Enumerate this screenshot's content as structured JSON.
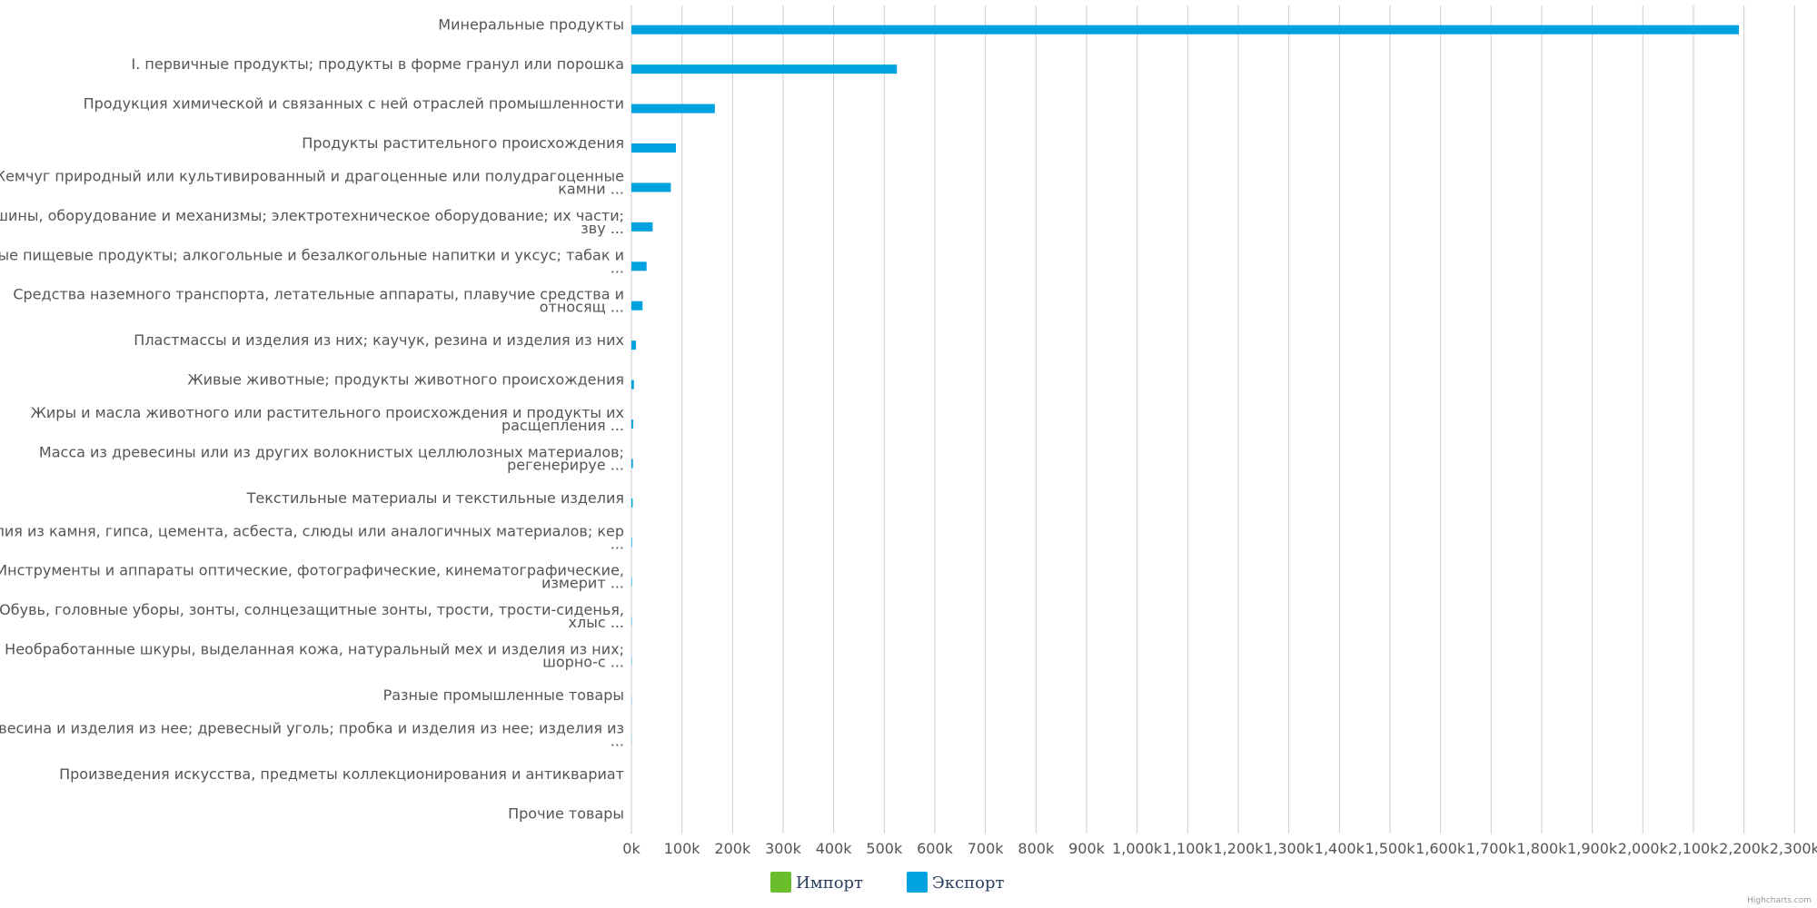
{
  "chart_data": {
    "type": "bar",
    "orientation": "horizontal",
    "categories": [
      [
        "Минеральные продукты"
      ],
      [
        "I. первичные продукты; продукты в форме гранул или порошка"
      ],
      [
        "Продукция химической и связанных с ней отраслей промышленности"
      ],
      [
        "Продукты растительного происхождения"
      ],
      [
        "Жемчуг природный или культивированный и драгоценные или полудрагоценные",
        "камни ..."
      ],
      [
        "Машины, оборудование и механизмы; электротехническое оборудование; их части;",
        "зву ..."
      ],
      [
        "Готовые пищевые продукты; алкогольные и безалкогольные напитки и уксус; табак и",
        "..."
      ],
      [
        "Средства наземного транспорта, летательные аппараты, плавучие средства и",
        "относящ ..."
      ],
      [
        "Пластмассы и изделия из них; каучук, резина и изделия из них"
      ],
      [
        "Живые животные; продукты животного происхождения"
      ],
      [
        "Жиры и масла животного или растительного происхождения и продукты их",
        "расщепления ..."
      ],
      [
        "Масса из древесины или из других волокнистых целлюлозных материалов;",
        "регенерируе ..."
      ],
      [
        "Текстильные материалы и текстильные изделия"
      ],
      [
        "Изделия из камня, гипса, цемента, асбеста, слюды или аналогичных материалов; кер",
        "..."
      ],
      [
        "Инструменты и аппараты оптические, фотографические, кинематографические,",
        "измерит ..."
      ],
      [
        "Обувь, головные уборы, зонты, солнцезащитные зонты, трости, трости-сиденья,",
        "хлыс ..."
      ],
      [
        "Необработанные шкуры, выделанная кожа, натуральный мех и изделия из них;",
        "шорно-с ..."
      ],
      [
        "Разные промышленные товары"
      ],
      [
        "Древесина и изделия из нее; древесный уголь; пробка и изделия из нее; изделия из",
        "..."
      ],
      [
        "Произведения искусства, предметы коллекционирования и антиквариат"
      ],
      [
        "Прочие товары"
      ]
    ],
    "series": [
      {
        "name": "Импорт",
        "color": "#6cbd2c",
        "values": [
          0,
          0,
          0,
          0,
          0,
          0,
          0,
          0,
          0,
          0,
          0,
          0,
          0,
          0,
          0,
          0,
          0,
          0,
          0,
          0,
          0
        ]
      },
      {
        "name": "Экспорт",
        "color": "#00a3e0",
        "values": [
          2190000,
          525000,
          165000,
          88000,
          78000,
          42000,
          30000,
          22000,
          9000,
          5000,
          3500,
          3000,
          2500,
          1200,
          1000,
          800,
          600,
          400,
          300,
          100,
          50
        ]
      }
    ],
    "xaxis": {
      "min": 0,
      "max": 2330000,
      "tick_step": 100000,
      "tick_labels": [
        "0k",
        "100k",
        "200k",
        "300k",
        "400k",
        "500k",
        "600k",
        "700k",
        "800k",
        "900k",
        "1,000k",
        "1,100k",
        "1,200k",
        "1,300k",
        "1,400k",
        "1,500k",
        "1,600k",
        "1,700k",
        "1,800k",
        "1,900k",
        "2,000k",
        "2,100k",
        "2,200k",
        "2,300k"
      ]
    },
    "grid": true,
    "legend_position": "bottom-center",
    "credits": "Highcharts.com",
    "gridline_color": "#cccccc"
  }
}
